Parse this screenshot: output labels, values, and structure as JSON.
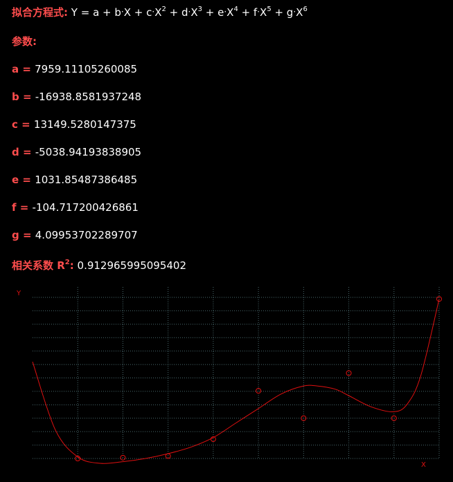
{
  "equation": {
    "label": "拟合方程式:",
    "Y": "Y",
    "a": "a",
    "b": "b",
    "c": "c",
    "d": "d",
    "e": "e",
    "f": "f",
    "g": "g",
    "X": "X",
    "p2": "2",
    "p3": "3",
    "p4": "4",
    "p5": "5",
    "p6": "6"
  },
  "params_label": "参数:",
  "params": [
    {
      "name": "a",
      "value": "7959.11105260085"
    },
    {
      "name": "b",
      "value": "-16938.8581937248"
    },
    {
      "name": "c",
      "value": "13149.5280147375"
    },
    {
      "name": "d",
      "value": "-5038.94193838905"
    },
    {
      "name": "e",
      "value": "1031.85487386485"
    },
    {
      "name": "f",
      "value": "-104.717200426861"
    },
    {
      "name": "g",
      "value": "4.09953702289707"
    }
  ],
  "r2": {
    "label": "相关系数 R",
    "exp": "2",
    "colon": ":",
    "value": "0.912965995095402"
  },
  "chart_data": {
    "type": "scatter",
    "xlabel": "X",
    "ylabel": "Y",
    "xlim": [
      1,
      10
    ],
    "ylim": [
      0,
      1
    ],
    "points": [
      {
        "x": 2,
        "y": 0.0
      },
      {
        "x": 3,
        "y": 0.005
      },
      {
        "x": 4,
        "y": 0.015
      },
      {
        "x": 5,
        "y": 0.12
      },
      {
        "x": 6,
        "y": 0.42
      },
      {
        "x": 7,
        "y": 0.25
      },
      {
        "x": 8,
        "y": 0.53
      },
      {
        "x": 9,
        "y": 0.25
      },
      {
        "x": 10,
        "y": 0.99
      }
    ],
    "curve": [
      {
        "x": 1.0,
        "y": 0.6
      },
      {
        "x": 1.5,
        "y": 0.18
      },
      {
        "x": 2.0,
        "y": 0.01
      },
      {
        "x": 2.5,
        "y": -0.03
      },
      {
        "x": 3.0,
        "y": -0.02
      },
      {
        "x": 3.5,
        "y": 0.0
      },
      {
        "x": 4.0,
        "y": 0.03
      },
      {
        "x": 4.5,
        "y": 0.07
      },
      {
        "x": 5.0,
        "y": 0.13
      },
      {
        "x": 5.5,
        "y": 0.22
      },
      {
        "x": 6.0,
        "y": 0.31
      },
      {
        "x": 6.5,
        "y": 0.4
      },
      {
        "x": 7.0,
        "y": 0.45
      },
      {
        "x": 7.3,
        "y": 0.45
      },
      {
        "x": 7.7,
        "y": 0.43
      },
      {
        "x": 8.0,
        "y": 0.39
      },
      {
        "x": 8.5,
        "y": 0.32
      },
      {
        "x": 9.0,
        "y": 0.29
      },
      {
        "x": 9.3,
        "y": 0.34
      },
      {
        "x": 9.6,
        "y": 0.52
      },
      {
        "x": 10.0,
        "y": 0.99
      }
    ],
    "grid": true,
    "colors": {
      "series": "#e01010",
      "grid": "#4a6a6e",
      "axis_label": "#e01010"
    }
  }
}
